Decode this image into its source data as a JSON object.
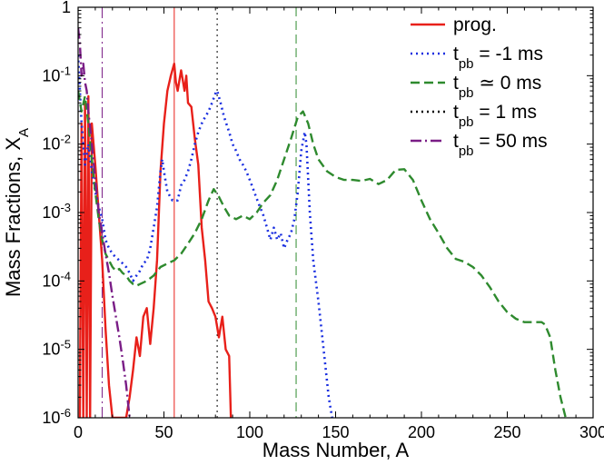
{
  "chart_data": {
    "type": "line",
    "xlabel": "Mass Number, A",
    "ylabel_main": "Mass Fractions, X",
    "ylabel_sub": "A",
    "xlim": [
      0,
      300
    ],
    "ylim": [
      1e-06,
      1
    ],
    "yscale": "log",
    "grid": false,
    "legend_placement": "top-right",
    "x_ticks": [
      0,
      50,
      100,
      150,
      200,
      250,
      300
    ],
    "x_tick_labels": [
      "0",
      "50",
      "100",
      "150",
      "200",
      "250",
      "300"
    ],
    "y_ticks": [
      1,
      0.1,
      0.01,
      0.001,
      0.0001,
      1e-05,
      1e-06
    ],
    "y_tick_labels": [
      {
        "base": "1",
        "exp": ""
      },
      {
        "base": "10",
        "exp": "-1"
      },
      {
        "base": "10",
        "exp": "-2"
      },
      {
        "base": "10",
        "exp": "-3"
      },
      {
        "base": "10",
        "exp": "-4"
      },
      {
        "base": "10",
        "exp": "-5"
      },
      {
        "base": "10",
        "exp": "-6"
      }
    ],
    "vertical_lines": [
      {
        "x": 56,
        "color": "#e8201a",
        "dash": "solid"
      },
      {
        "x": 81,
        "color": "#000000",
        "dash": "dotted"
      },
      {
        "x": 127,
        "color": "#2e8a2e",
        "dash": "dashed"
      },
      {
        "x": 14,
        "color": "#7a1d86",
        "dash": "dashdot"
      }
    ],
    "series": [
      {
        "name": "prog.",
        "legend_main": "prog.",
        "legend_sub": "",
        "legend_rest": "",
        "color": "#e8201a",
        "dash": "solid",
        "points": [
          [
            1,
            1e-06
          ],
          [
            2,
            0.02
          ],
          [
            3,
            1e-06
          ],
          [
            4,
            0.04
          ],
          [
            5,
            1e-06
          ],
          [
            6,
            0.05
          ],
          [
            7,
            1e-06
          ],
          [
            8,
            0.02
          ],
          [
            10,
            0.005
          ],
          [
            12,
            0.001
          ],
          [
            14,
            0.0002
          ],
          [
            16,
            2e-05
          ],
          [
            18,
            3e-06
          ],
          [
            20,
            1e-06
          ],
          [
            28,
            1e-06
          ],
          [
            30,
            2e-06
          ],
          [
            32,
            5e-06
          ],
          [
            34,
            1.5e-05
          ],
          [
            36,
            8e-06
          ],
          [
            38,
            3e-05
          ],
          [
            40,
            4e-05
          ],
          [
            42,
            1.2e-05
          ],
          [
            44,
            4e-05
          ],
          [
            46,
            0.0002
          ],
          [
            48,
            0.004
          ],
          [
            50,
            0.02
          ],
          [
            52,
            0.06
          ],
          [
            54,
            0.1
          ],
          [
            56,
            0.15
          ],
          [
            57,
            0.08
          ],
          [
            58,
            0.06
          ],
          [
            60,
            0.12
          ],
          [
            62,
            0.06
          ],
          [
            63,
            0.1
          ],
          [
            64,
            0.04
          ],
          [
            66,
            0.035
          ],
          [
            68,
            0.012
          ],
          [
            70,
            0.005
          ],
          [
            72,
            0.0006
          ],
          [
            74,
            0.0002
          ],
          [
            76,
            5e-05
          ],
          [
            78,
            4e-05
          ],
          [
            80,
            3e-05
          ],
          [
            82,
            1.5e-05
          ],
          [
            84,
            3e-05
          ],
          [
            86,
            1e-05
          ],
          [
            88,
            8e-06
          ],
          [
            89,
            1e-06
          ]
        ]
      },
      {
        "name": "t_pb = -1 ms",
        "legend_main": "t",
        "legend_sub": "pb",
        "legend_rest": " = -1 ms",
        "color": "#1a2fe0",
        "dash": "dotted",
        "points": [
          [
            0,
            0.2
          ],
          [
            2,
            0.02
          ],
          [
            4,
            0.005
          ],
          [
            6,
            0.01
          ],
          [
            8,
            0.004
          ],
          [
            10,
            0.002
          ],
          [
            12,
            0.0012
          ],
          [
            14,
            0.0008
          ],
          [
            16,
            0.0004
          ],
          [
            18,
            0.0003
          ],
          [
            20,
            0.00025
          ],
          [
            22,
            0.00022
          ],
          [
            24,
            0.0002
          ],
          [
            26,
            0.00018
          ],
          [
            28,
            0.00016
          ],
          [
            30,
            0.00013
          ],
          [
            32,
            0.0001
          ],
          [
            34,
            0.00012
          ],
          [
            36,
            0.00014
          ],
          [
            38,
            0.00018
          ],
          [
            40,
            0.0002
          ],
          [
            42,
            0.0003
          ],
          [
            44,
            0.0006
          ],
          [
            46,
            0.0012
          ],
          [
            48,
            0.004
          ],
          [
            49,
            0.006
          ],
          [
            50,
            0.004
          ],
          [
            52,
            0.002
          ],
          [
            55,
            0.0015
          ],
          [
            58,
            0.0015
          ],
          [
            60,
            0.0025
          ],
          [
            62,
            0.003
          ],
          [
            64,
            0.004
          ],
          [
            66,
            0.006
          ],
          [
            68,
            0.01
          ],
          [
            70,
            0.015
          ],
          [
            72,
            0.02
          ],
          [
            74,
            0.025
          ],
          [
            76,
            0.03
          ],
          [
            78,
            0.04
          ],
          [
            80,
            0.055
          ],
          [
            81,
            0.06
          ],
          [
            83,
            0.04
          ],
          [
            85,
            0.025
          ],
          [
            88,
            0.015
          ],
          [
            90,
            0.01
          ],
          [
            92,
            0.008
          ],
          [
            94,
            0.006
          ],
          [
            96,
            0.005
          ],
          [
            98,
            0.004
          ],
          [
            100,
            0.003
          ],
          [
            102,
            0.0022
          ],
          [
            104,
            0.0016
          ],
          [
            106,
            0.0012
          ],
          [
            108,
            0.0009
          ],
          [
            110,
            0.0006
          ],
          [
            112,
            0.0004
          ],
          [
            114,
            0.0006
          ],
          [
            116,
            0.0004
          ],
          [
            118,
            0.0005
          ],
          [
            120,
            0.0003
          ],
          [
            122,
            0.0004
          ],
          [
            124,
            0.0005
          ],
          [
            126,
            0.0008
          ],
          [
            128,
            0.002
          ],
          [
            130,
            0.008
          ],
          [
            132,
            0.015
          ],
          [
            133,
            0.01
          ],
          [
            135,
            0.001
          ],
          [
            137,
            0.0002
          ],
          [
            140,
            5e-05
          ],
          [
            143,
            1e-05
          ],
          [
            146,
            2e-06
          ],
          [
            148,
            1e-06
          ]
        ]
      },
      {
        "name": "t_pb ≃ 0 ms",
        "legend_main": "t",
        "legend_sub": "pb",
        "legend_rest": " ≃ 0 ms",
        "color": "#2e8a2e",
        "dash": "dashed",
        "points": [
          [
            0,
            0.06
          ],
          [
            2,
            0.03
          ],
          [
            4,
            0.05
          ],
          [
            6,
            0.02
          ],
          [
            8,
            0.006
          ],
          [
            10,
            0.002
          ],
          [
            12,
            0.0008
          ],
          [
            14,
            0.0004
          ],
          [
            16,
            0.00025
          ],
          [
            18,
            0.0002
          ],
          [
            20,
            0.00016
          ],
          [
            22,
            0.00014
          ],
          [
            24,
            0.00015
          ],
          [
            26,
            0.00013
          ],
          [
            28,
            0.00012
          ],
          [
            30,
            0.0001
          ],
          [
            32,
            9e-05
          ],
          [
            34,
            8.5e-05
          ],
          [
            36,
            9e-05
          ],
          [
            40,
            0.0001
          ],
          [
            44,
            0.00012
          ],
          [
            48,
            0.00016
          ],
          [
            52,
            0.00018
          ],
          [
            56,
            0.0002
          ],
          [
            60,
            0.00025
          ],
          [
            64,
            0.00035
          ],
          [
            68,
            0.0005
          ],
          [
            72,
            0.0008
          ],
          [
            76,
            0.0015
          ],
          [
            79,
            0.0022
          ],
          [
            82,
            0.0017
          ],
          [
            85,
            0.0012
          ],
          [
            88,
            0.0009
          ],
          [
            92,
            0.0008
          ],
          [
            96,
            0.0009
          ],
          [
            100,
            0.0008
          ],
          [
            104,
            0.001
          ],
          [
            108,
            0.0014
          ],
          [
            112,
            0.0018
          ],
          [
            116,
            0.003
          ],
          [
            120,
            0.006
          ],
          [
            124,
            0.012
          ],
          [
            128,
            0.025
          ],
          [
            131,
            0.03
          ],
          [
            134,
            0.02
          ],
          [
            137,
            0.01
          ],
          [
            140,
            0.006
          ],
          [
            145,
            0.004
          ],
          [
            150,
            0.0033
          ],
          [
            155,
            0.003
          ],
          [
            160,
            0.003
          ],
          [
            165,
            0.0029
          ],
          [
            170,
            0.0031
          ],
          [
            175,
            0.0026
          ],
          [
            180,
            0.003
          ],
          [
            185,
            0.0042
          ],
          [
            190,
            0.0043
          ],
          [
            195,
            0.003
          ],
          [
            200,
            0.0015
          ],
          [
            205,
            0.0008
          ],
          [
            210,
            0.0005
          ],
          [
            215,
            0.0003
          ],
          [
            220,
            0.00021
          ],
          [
            225,
            0.00019
          ],
          [
            230,
            0.00016
          ],
          [
            235,
            0.00012
          ],
          [
            240,
            8e-05
          ],
          [
            245,
            5e-05
          ],
          [
            250,
            3.5e-05
          ],
          [
            255,
            2.8e-05
          ],
          [
            260,
            2.5e-05
          ],
          [
            265,
            2.5e-05
          ],
          [
            270,
            2.5e-05
          ],
          [
            272,
            2.3e-05
          ],
          [
            275,
            1.5e-05
          ],
          [
            278,
            5e-06
          ],
          [
            281,
            2e-06
          ],
          [
            284,
            1e-06
          ]
        ]
      },
      {
        "name": "t_pb = 1 ms",
        "legend_main": "t",
        "legend_sub": "pb",
        "legend_rest": " = 1 ms",
        "color": "#000000",
        "dash": "dotted",
        "points": []
      },
      {
        "name": "t_pb = 50 ms",
        "legend_main": "t",
        "legend_sub": "pb",
        "legend_rest": " = 50 ms",
        "color": "#7a1d86",
        "dash": "dashdot",
        "points": [
          [
            0,
            0.5
          ],
          [
            1,
            0.3
          ],
          [
            2,
            0.1
          ],
          [
            3,
            0.15
          ],
          [
            4,
            0.08
          ],
          [
            5,
            0.06
          ],
          [
            6,
            0.03
          ],
          [
            8,
            0.01
          ],
          [
            10,
            0.003
          ],
          [
            12,
            0.001
          ],
          [
            14,
            0.0005
          ],
          [
            16,
            0.00025
          ],
          [
            18,
            0.00013
          ],
          [
            20,
            6e-05
          ],
          [
            22,
            3e-05
          ],
          [
            24,
            1.5e-05
          ],
          [
            26,
            7e-06
          ],
          [
            28,
            3e-06
          ],
          [
            30,
            1e-06
          ]
        ]
      }
    ]
  }
}
